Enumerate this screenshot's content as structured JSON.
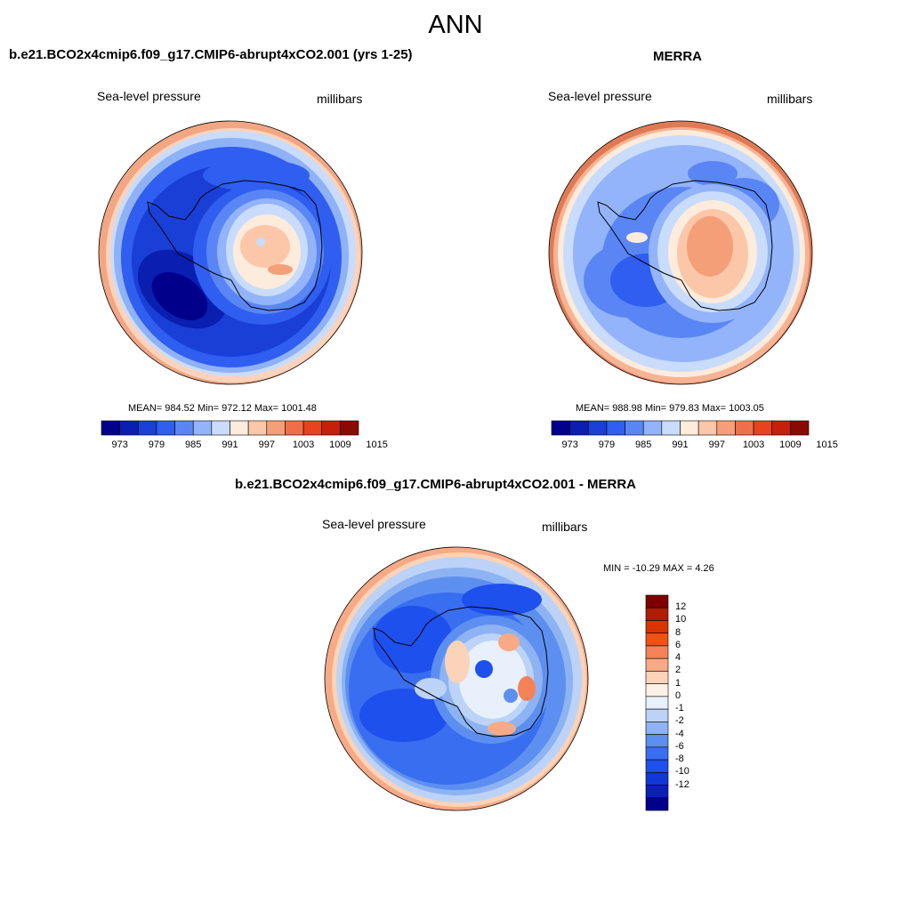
{
  "main_title": "ANN",
  "panels": [
    {
      "title": "b.e21.BCO2x4cmip6.f09_g17.CMIP6-abrupt4xCO2.001 (yrs 1-25)",
      "left_label": "Sea-level pressure",
      "right_label": "millibars",
      "stats": "MEAN= 984.52  Min= 972.12  Max= 1001.48"
    },
    {
      "title": "MERRA",
      "left_label": "Sea-level pressure",
      "right_label": "millibars",
      "stats": "MEAN= 988.98  Min= 979.83  Max= 1003.05"
    },
    {
      "title": "b.e21.BCO2x4cmip6.f09_g17.CMIP6-abrupt4xCO2.001 - MERRA",
      "left_label": "Sea-level pressure",
      "right_label": "millibars",
      "stats": "MIN = -10.29 MAX =   4.26"
    }
  ],
  "colorbar_abs": {
    "colors": [
      "#00008b",
      "#0a1fb0",
      "#1a3fd6",
      "#2f5ef0",
      "#5a86f5",
      "#93b4fa",
      "#c9dcfc",
      "#fdebdc",
      "#fbc7a8",
      "#f59f79",
      "#ee7048",
      "#e8421e",
      "#c5200a",
      "#8b0a00"
    ],
    "tick_labels": [
      "973",
      "979",
      "985",
      "991",
      "997",
      "1003",
      "1009",
      "1015"
    ]
  },
  "colorbar_diff": {
    "colors": [
      "#7f0000",
      "#b01c00",
      "#d93300",
      "#f25114",
      "#f58257",
      "#f7aa85",
      "#fbd3b8",
      "#fdf1e6",
      "#e8f0fc",
      "#bcd3f7",
      "#8db3f2",
      "#5d8ff0",
      "#3a6ef0",
      "#1e50ee",
      "#1038d6",
      "#0a21b0",
      "#00008b"
    ],
    "tick_labels": [
      "12",
      "10",
      "8",
      "6",
      "4",
      "2",
      "1",
      "0",
      "-1",
      "-2",
      "-4",
      "-6",
      "-8",
      "-10",
      "-12"
    ]
  }
}
